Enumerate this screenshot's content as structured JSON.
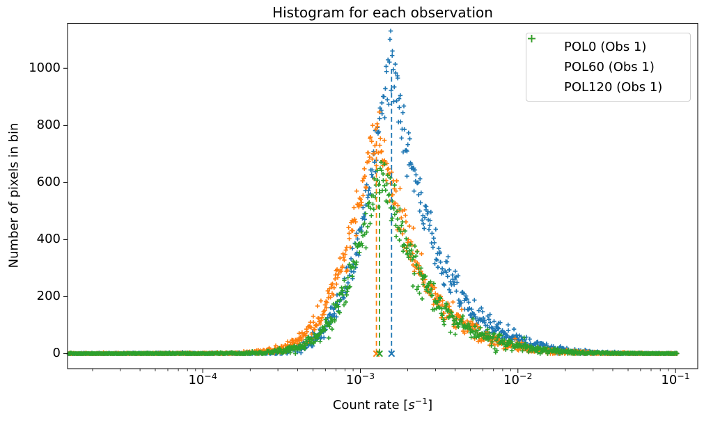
{
  "title": "Histogram for each observation",
  "axes": {
    "ylabel": "Number of pixels in bin",
    "xlabel": {
      "pre": "Count rate [",
      "var": "s",
      "sup": "−1",
      "post": "]"
    },
    "x_scale": "log",
    "x_ticks": [
      {
        "base": "10",
        "exp": "−4",
        "t": -4
      },
      {
        "base": "10",
        "exp": "−3",
        "t": -3
      },
      {
        "base": "10",
        "exp": "−2",
        "t": -2
      },
      {
        "base": "10",
        "exp": "−1",
        "t": -1
      }
    ],
    "y_ticks": [
      {
        "label": "0",
        "v": 0
      },
      {
        "label": "200",
        "v": 200
      },
      {
        "label": "400",
        "v": 400
      },
      {
        "label": "600",
        "v": 600
      },
      {
        "label": "800",
        "v": 800
      },
      {
        "label": "1000",
        "v": 1000
      }
    ],
    "xlim_log10": [
      -4.858,
      -0.859
    ],
    "ylim": [
      -52.5,
      1158
    ],
    "grid": false
  },
  "legend": {
    "position": "upper right",
    "marker": "+",
    "items": [
      {
        "label": "POL0 (Obs 1)",
        "color": "#1f77b4"
      },
      {
        "label": "POL60 (Obs 1)",
        "color": "#ff7f0e"
      },
      {
        "label": "POL120 (Obs 1)",
        "color": "#2ca02c"
      }
    ]
  },
  "chart_data": {
    "type": "scatter",
    "title": "Histogram for each observation",
    "xlabel": "Count rate [s^-1]",
    "ylabel": "Number of pixels in bin",
    "x_scale": "log",
    "marker": "+",
    "x_range_log10": [
      -4.853,
      -0.987
    ],
    "n_points_per_series": 950,
    "noise_sigma_scale": 1.8,
    "seed": 11,
    "series": [
      {
        "name": "POL0 (Obs 1)",
        "color": "#1f77b4",
        "approx_peak": {
          "x": 0.00155,
          "y": 1090
        },
        "mode_line": {
          "x": 0.00158,
          "x_log10": -2.802,
          "y_top": 1005
        },
        "envelope_log10x_y": [
          [
            -4.86,
            0
          ],
          [
            -3.7,
            1
          ],
          [
            -3.5,
            5
          ],
          [
            -3.35,
            25
          ],
          [
            -3.25,
            70
          ],
          [
            -3.15,
            160
          ],
          [
            -3.05,
            300
          ],
          [
            -2.98,
            470
          ],
          [
            -2.92,
            650
          ],
          [
            -2.87,
            830
          ],
          [
            -2.835,
            960
          ],
          [
            -2.81,
            1030
          ],
          [
            -2.79,
            1000
          ],
          [
            -2.76,
            900
          ],
          [
            -2.71,
            760
          ],
          [
            -2.66,
            640
          ],
          [
            -2.6,
            500
          ],
          [
            -2.52,
            370
          ],
          [
            -2.44,
            270
          ],
          [
            -2.35,
            195
          ],
          [
            -2.25,
            130
          ],
          [
            -2.13,
            85
          ],
          [
            -2.0,
            50
          ],
          [
            -1.88,
            28
          ],
          [
            -1.75,
            14
          ],
          [
            -1.62,
            6
          ],
          [
            -1.5,
            3
          ],
          [
            -1.35,
            1
          ],
          [
            -0.99,
            0
          ]
        ]
      },
      {
        "name": "POL60 (Obs 1)",
        "color": "#ff7f0e",
        "approx_peak": {
          "x": 0.00126,
          "y": 800
        },
        "mode_line": {
          "x": 0.00126,
          "x_log10": -2.898,
          "y_top": 745
        },
        "envelope_log10x_y": [
          [
            -4.86,
            0
          ],
          [
            -3.8,
            1
          ],
          [
            -3.6,
            6
          ],
          [
            -3.45,
            25
          ],
          [
            -3.33,
            70
          ],
          [
            -3.23,
            150
          ],
          [
            -3.13,
            300
          ],
          [
            -3.05,
            430
          ],
          [
            -2.99,
            560
          ],
          [
            -2.94,
            670
          ],
          [
            -2.9,
            745
          ],
          [
            -2.86,
            700
          ],
          [
            -2.81,
            600
          ],
          [
            -2.75,
            480
          ],
          [
            -2.68,
            360
          ],
          [
            -2.6,
            260
          ],
          [
            -2.5,
            180
          ],
          [
            -2.38,
            115
          ],
          [
            -2.25,
            70
          ],
          [
            -2.1,
            38
          ],
          [
            -1.95,
            18
          ],
          [
            -1.8,
            8
          ],
          [
            -1.65,
            3
          ],
          [
            -1.45,
            1
          ],
          [
            -0.99,
            0
          ]
        ]
      },
      {
        "name": "POL120 (Obs 1)",
        "color": "#2ca02c",
        "approx_peak": {
          "x": 0.00132,
          "y": 670
        },
        "mode_line": {
          "x": 0.00132,
          "x_log10": -2.878,
          "y_top": 620
        },
        "envelope_log10x_y": [
          [
            -4.86,
            0
          ],
          [
            -3.75,
            1
          ],
          [
            -3.55,
            5
          ],
          [
            -3.4,
            20
          ],
          [
            -3.28,
            55
          ],
          [
            -3.18,
            125
          ],
          [
            -3.08,
            240
          ],
          [
            -3.0,
            380
          ],
          [
            -2.94,
            500
          ],
          [
            -2.89,
            585
          ],
          [
            -2.865,
            620
          ],
          [
            -2.83,
            580
          ],
          [
            -2.77,
            480
          ],
          [
            -2.7,
            370
          ],
          [
            -2.62,
            270
          ],
          [
            -2.52,
            185
          ],
          [
            -2.4,
            120
          ],
          [
            -2.28,
            78
          ],
          [
            -2.15,
            48
          ],
          [
            -2.0,
            26
          ],
          [
            -1.85,
            13
          ],
          [
            -1.7,
            6
          ],
          [
            -1.55,
            2
          ],
          [
            -1.35,
            1
          ],
          [
            -0.99,
            0
          ]
        ]
      }
    ]
  }
}
